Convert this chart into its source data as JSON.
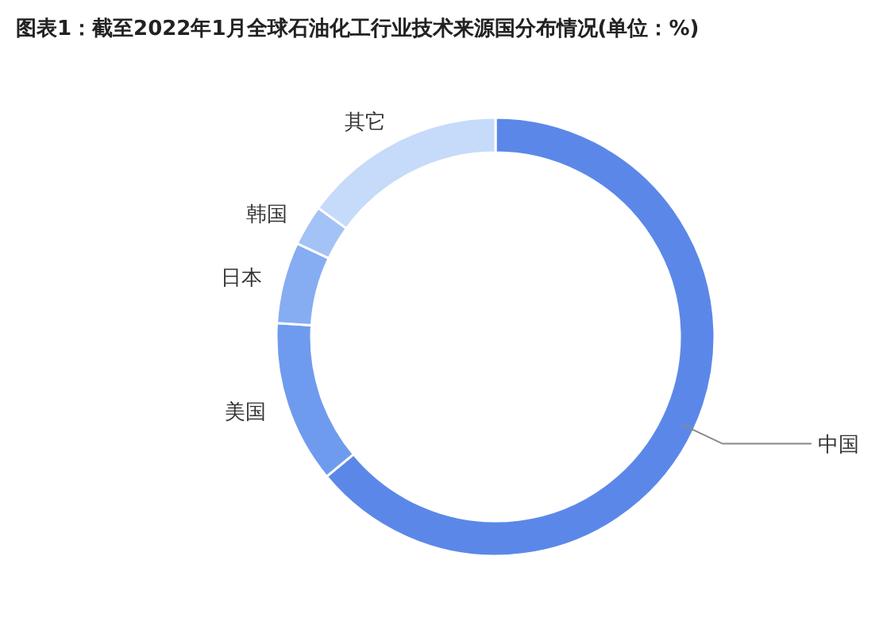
{
  "chart_data": {
    "type": "donut",
    "title": "图表1：截至2022年1月全球石油化工行业技术来源国分布情况(单位：%)",
    "categories": [
      "中国",
      "美国",
      "日本",
      "韩国",
      "其它"
    ],
    "values": [
      64,
      12,
      6,
      3,
      15
    ],
    "colors": [
      "#5b88e8",
      "#6f9bef",
      "#86adf2",
      "#a3c2f6",
      "#c6daf9"
    ]
  }
}
